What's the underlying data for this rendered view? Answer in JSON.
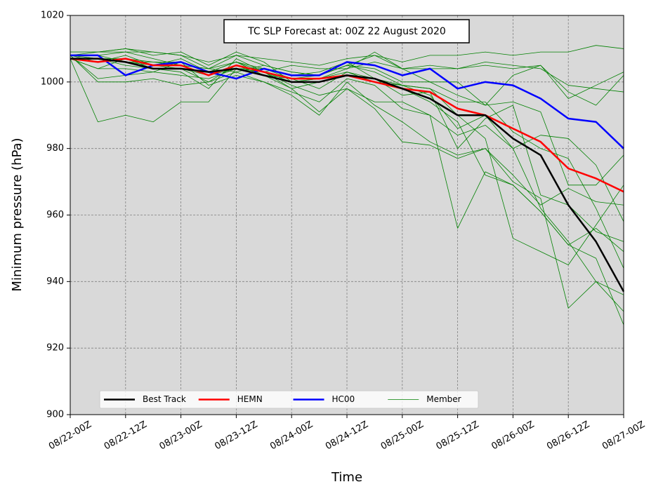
{
  "chart_data": {
    "type": "line",
    "title": "TC SLP Forecast at: 00Z 22 August 2020",
    "x_label": "Time",
    "y_label": "Minimum pressure (hPa)",
    "categories": [
      "08/22-00Z",
      null,
      "08/22-12Z",
      null,
      "08/23-00Z",
      null,
      "08/23-12Z",
      null,
      "08/24-00Z",
      null,
      "08/24-12Z",
      null,
      "08/25-00Z",
      null,
      "08/25-12Z",
      null,
      "08/26-00Z",
      null,
      "08/26-12Z",
      null,
      "08/27-00Z"
    ],
    "ylim": [
      900,
      1020
    ],
    "yticks": [
      900,
      920,
      940,
      960,
      980,
      1000,
      1020
    ],
    "grid": true,
    "legend": "lower left",
    "series": [
      {
        "name": "Best Track",
        "color": "#000000",
        "values": [
          1007,
          1007,
          1006,
          1004,
          1004,
          1003,
          1004,
          1002,
          1000,
          1000,
          1002,
          1001,
          998,
          995,
          990,
          990,
          983,
          978,
          963,
          952,
          937
        ]
      },
      {
        "name": "HEMN",
        "color": "#ff0000",
        "values": [
          1007,
          1006,
          1007,
          1005,
          1005,
          1002,
          1005,
          1003,
          1001,
          1001,
          1002,
          1000,
          998,
          997,
          992,
          990,
          986,
          982,
          974,
          971,
          967
        ]
      },
      {
        "name": "HC00",
        "color": "#0000ff",
        "values": [
          1008,
          1008,
          1002,
          1005,
          1006,
          1003,
          1001,
          1004,
          1002,
          1002,
          1006,
          1005,
          1002,
          1004,
          998,
          1000,
          999,
          995,
          989,
          988,
          980
        ]
      },
      {
        "name": "Member",
        "color": "#008000",
        "members": [
          [
            1007,
            988,
            990,
            988,
            994,
            994,
            1004,
            1003,
            998,
            991,
            998,
            994,
            994,
            990,
            984,
            987,
            980,
            962,
            952,
            940,
            931
          ],
          [
            1008,
            1000,
            1000,
            1001,
            999,
            1000,
            1003,
            1000,
            997,
            994,
            1001,
            999,
            992,
            990,
            956,
            973,
            969,
            961,
            951,
            947,
            927
          ],
          [
            1009,
            1009,
            1010,
            1009,
            1008,
            1006,
            1008,
            1007,
            1006,
            1005,
            1007,
            1008,
            1006,
            1008,
            1008,
            1009,
            1008,
            1009,
            1009,
            1011,
            1010
          ],
          [
            1008,
            1008,
            1009,
            1007,
            1005,
            1004,
            1006,
            1003,
            1005,
            1004,
            1004,
            1006,
            1004,
            1005,
            1004,
            1006,
            1005,
            1004,
            999,
            998,
            997
          ],
          [
            1008,
            1001,
            1002,
            1003,
            1006,
            999,
            1002,
            1000,
            996,
            990,
            1000,
            993,
            988,
            982,
            978,
            980,
            972,
            963,
            968,
            964,
            963
          ],
          [
            1009,
            1009,
            1010,
            1008,
            1009,
            1005,
            1009,
            1006,
            1000,
            1001,
            1004,
            1009,
            1004,
            1000,
            1000,
            993,
            1002,
            1005,
            995,
            999,
            1003
          ],
          [
            1007,
            1004,
            1007,
            1004,
            1003,
            998,
            1007,
            1003,
            999,
            996,
            998,
            992,
            982,
            981,
            977,
            980,
            970,
            965,
            932,
            940,
            936
          ],
          [
            1008,
            1007,
            1006,
            1005,
            1004,
            1002,
            1004,
            1004,
            1001,
            998,
            1003,
            1000,
            999,
            996,
            986,
            990,
            980,
            984,
            983,
            975,
            958
          ],
          [
            1008,
            1006,
            1008,
            1005,
            1007,
            1003,
            1006,
            1002,
            998,
            1000,
            1002,
            1001,
            999,
            998,
            994,
            994,
            985,
            980,
            977,
            962,
            944
          ],
          [
            1007,
            1007,
            1005,
            1004,
            1004,
            1000,
            1005,
            1002,
            1001,
            1002,
            1005,
            1003,
            999,
            998,
            990,
            983,
            953,
            949,
            945,
            957,
            969
          ],
          [
            1008,
            1008,
            1006,
            1006,
            1005,
            1004,
            1003,
            1005,
            1003,
            1002,
            1005,
            1004,
            1000,
            1000,
            996,
            993,
            994,
            991,
            969,
            969,
            978
          ],
          [
            1008,
            1009,
            1009,
            1009,
            1008,
            1004,
            1008,
            1005,
            1003,
            1002,
            1005,
            1008,
            1004,
            1004,
            1004,
            1005,
            1004,
            1005,
            997,
            993,
            1002
          ],
          [
            1007,
            1004,
            1004,
            1003,
            1002,
            1001,
            1004,
            1003,
            1000,
            1001,
            1003,
            1001,
            998,
            994,
            988,
            972,
            969,
            961,
            951,
            956,
            949
          ],
          [
            1008,
            1007,
            1007,
            1006,
            1006,
            1003,
            1006,
            1004,
            1002,
            1003,
            1006,
            1001,
            996,
            997,
            980,
            989,
            993,
            966,
            963,
            955,
            952
          ]
        ]
      }
    ]
  }
}
